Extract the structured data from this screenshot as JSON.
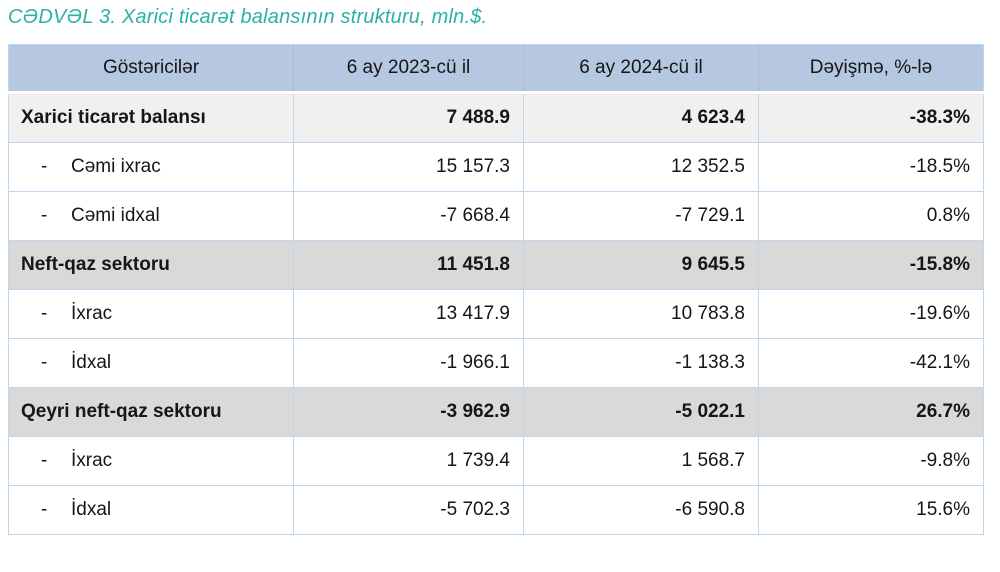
{
  "title": "CƏDVƏL 3. Xarici ticarət balansının strukturu, mln.$.",
  "table": {
    "dash": "-",
    "headers": {
      "indicator": "Göstəricilər",
      "period_2023": "6 ay 2023-cü il",
      "period_2024": "6 ay 2024-cü il",
      "change": "Dəyişmə, %-lə"
    },
    "rows": [
      {
        "label": "Xarici ticarət balansı",
        "v2023": "7 488.9",
        "v2024": "4 623.4",
        "change": "-38.3%"
      },
      {
        "label": "Cəmi ixrac",
        "v2023": "15 157.3",
        "v2024": "12 352.5",
        "change": "-18.5%"
      },
      {
        "label": "Cəmi idxal",
        "v2023": "-7 668.4",
        "v2024": "-7 729.1",
        "change": "0.8%"
      },
      {
        "label": "Neft-qaz sektoru",
        "v2023": "11 451.8",
        "v2024": "9 645.5",
        "change": "-15.8%"
      },
      {
        "label": "İxrac",
        "v2023": "13 417.9",
        "v2024": "10 783.8",
        "change": "-19.6%"
      },
      {
        "label": "İdxal",
        "v2023": "-1 966.1",
        "v2024": "-1 138.3",
        "change": "-42.1%"
      },
      {
        "label": "Qeyri neft-qaz sektoru",
        "v2023": "-3 962.9",
        "v2024": "-5 022.1",
        "change": "26.7%"
      },
      {
        "label": "İxrac",
        "v2023": "1 739.4",
        "v2024": "1 568.7",
        "change": "-9.8%"
      },
      {
        "label": "İdxal",
        "v2023": "-5 702.3",
        "v2024": "-6 590.8",
        "change": "15.6%"
      }
    ],
    "colors": {
      "title_text": "#2cb1a3",
      "header_bg": "#b5c7e1",
      "grid_border": "#bdd7ee",
      "section_row_bg": "#d9d9d9",
      "section_light_row_bg": "#f0f0f0"
    }
  }
}
